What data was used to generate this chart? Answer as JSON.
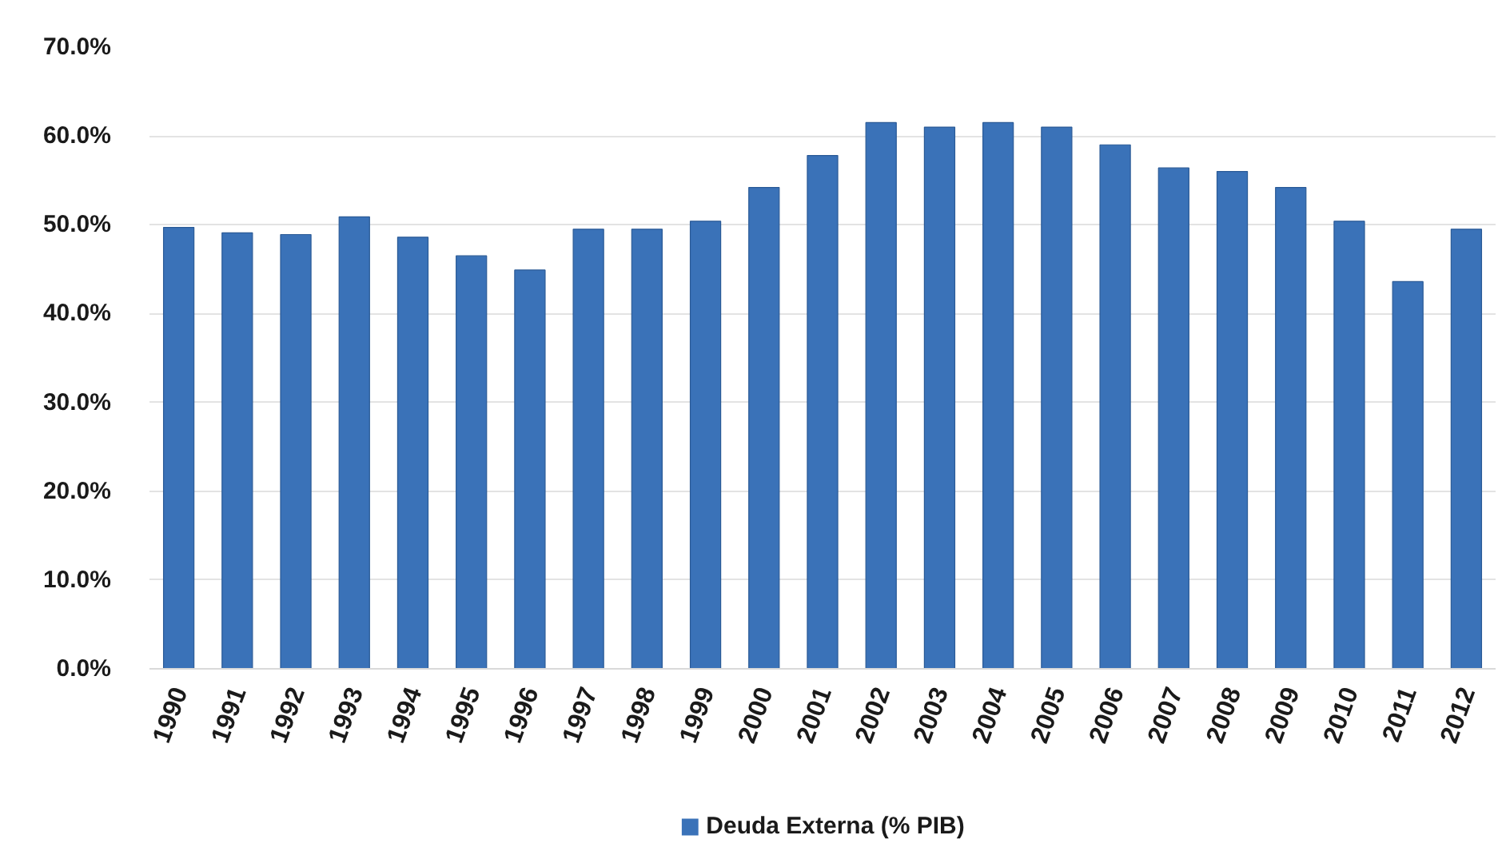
{
  "chart_data": {
    "type": "bar",
    "categories": [
      "1990",
      "1991",
      "1992",
      "1993",
      "1994",
      "1995",
      "1996",
      "1997",
      "1998",
      "1999",
      "2000",
      "2001",
      "2002",
      "2003",
      "2004",
      "2005",
      "2006",
      "2007",
      "2008",
      "2009",
      "2010",
      "2011",
      "2012"
    ],
    "series": [
      {
        "name": "Deuda Externa (% PIB)",
        "color": "#3a72b8",
        "values": [
          49.7,
          49.1,
          48.9,
          50.9,
          48.6,
          46.5,
          44.9,
          49.5,
          49.5,
          50.4,
          54.2,
          57.8,
          61.5,
          61.0,
          61.5,
          61.0,
          59.0,
          56.4,
          56.0,
          54.2,
          50.4,
          43.6,
          49.5
        ]
      }
    ],
    "ylim": [
      0,
      70
    ],
    "yticks": [
      {
        "value": 0,
        "label": "0.0%"
      },
      {
        "value": 10,
        "label": "10.0%"
      },
      {
        "value": 20,
        "label": "20.0%"
      },
      {
        "value": 30,
        "label": "30.0%"
      },
      {
        "value": 40,
        "label": "40.0%"
      },
      {
        "value": 50,
        "label": "50.0%"
      },
      {
        "value": 60,
        "label": "60.0%"
      },
      {
        "value": 70,
        "label": "70.0%"
      }
    ],
    "grid": "y",
    "legend": "bottom"
  }
}
